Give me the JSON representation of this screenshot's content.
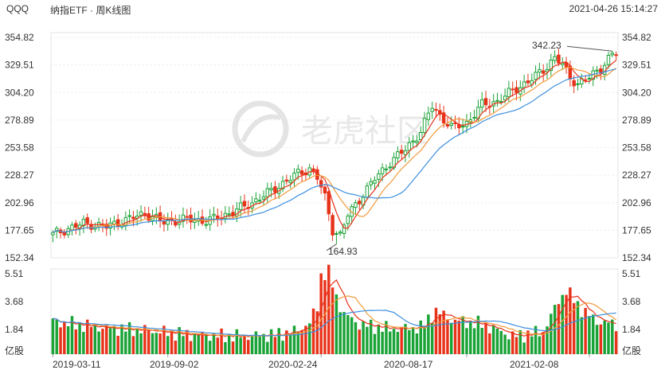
{
  "header": {
    "symbol": "QQQ",
    "title": "纳指ETF · 周K线图",
    "timestamp": "2021-04-26 15:14:27"
  },
  "watermark": "老虎社区",
  "colors": {
    "up": "#1aa336",
    "down": "#e8331b",
    "ma_short": "#e8331b",
    "ma_mid": "#f29a3c",
    "ma_long": "#3d8fe0"
  },
  "chart_data": [
    {
      "type": "candlestick",
      "y_ticks": [
        "354.82",
        "329.51",
        "304.20",
        "278.89",
        "253.58",
        "228.27",
        "202.96",
        "177.65",
        "152.34"
      ],
      "ylim": [
        152.34,
        354.82
      ],
      "x_ticks": [
        "2019-03-11",
        "2019-09-02",
        "2020-02-24",
        "2020-08-17",
        "2021-02-08"
      ],
      "annotations": [
        {
          "text": "342.23",
          "value": 342.23
        },
        {
          "text": "164.93",
          "value": 164.93
        }
      ],
      "anchors": [
        {
          "i": 0,
          "c": 174
        },
        {
          "i": 8,
          "c": 184
        },
        {
          "i": 14,
          "c": 181
        },
        {
          "i": 18,
          "c": 186
        },
        {
          "i": 24,
          "c": 193
        },
        {
          "i": 29,
          "c": 185
        },
        {
          "i": 35,
          "c": 188
        },
        {
          "i": 40,
          "c": 186
        },
        {
          "i": 46,
          "c": 193
        },
        {
          "i": 52,
          "c": 203
        },
        {
          "i": 58,
          "c": 216
        },
        {
          "i": 64,
          "c": 230
        },
        {
          "i": 67,
          "c": 234
        },
        {
          "i": 69,
          "c": 226
        },
        {
          "i": 71,
          "c": 208
        },
        {
          "i": 73,
          "c": 178
        },
        {
          "i": 75,
          "c": 173
        },
        {
          "i": 77,
          "c": 192
        },
        {
          "i": 80,
          "c": 206
        },
        {
          "i": 84,
          "c": 225
        },
        {
          "i": 88,
          "c": 240
        },
        {
          "i": 92,
          "c": 252
        },
        {
          "i": 96,
          "c": 268
        },
        {
          "i": 99,
          "c": 292
        },
        {
          "i": 101,
          "c": 283
        },
        {
          "i": 104,
          "c": 272
        },
        {
          "i": 108,
          "c": 276
        },
        {
          "i": 112,
          "c": 293
        },
        {
          "i": 116,
          "c": 296
        },
        {
          "i": 120,
          "c": 306
        },
        {
          "i": 124,
          "c": 314
        },
        {
          "i": 128,
          "c": 325
        },
        {
          "i": 131,
          "c": 336
        },
        {
          "i": 133,
          "c": 330
        },
        {
          "i": 135,
          "c": 318
        },
        {
          "i": 137,
          "c": 312
        },
        {
          "i": 140,
          "c": 318
        },
        {
          "i": 143,
          "c": 327
        },
        {
          "i": 146,
          "c": 339
        },
        {
          "i": 147,
          "c": 340
        }
      ]
    },
    {
      "type": "bar",
      "y_ticks": [
        "5.51",
        "3.68",
        "1.84"
      ],
      "ylim": [
        0,
        5.51
      ],
      "unit": "亿股",
      "anchors": [
        {
          "i": 0,
          "v": 2.2
        },
        {
          "i": 12,
          "v": 1.8
        },
        {
          "i": 24,
          "v": 1.6
        },
        {
          "i": 36,
          "v": 1.3
        },
        {
          "i": 48,
          "v": 1.2
        },
        {
          "i": 58,
          "v": 1.3
        },
        {
          "i": 64,
          "v": 1.6
        },
        {
          "i": 67,
          "v": 2.1
        },
        {
          "i": 69,
          "v": 3.2
        },
        {
          "i": 70,
          "v": 5.3
        },
        {
          "i": 72,
          "v": 5.5
        },
        {
          "i": 74,
          "v": 3.8
        },
        {
          "i": 76,
          "v": 2.7
        },
        {
          "i": 80,
          "v": 2.0
        },
        {
          "i": 88,
          "v": 1.7
        },
        {
          "i": 96,
          "v": 1.8
        },
        {
          "i": 100,
          "v": 2.9
        },
        {
          "i": 104,
          "v": 2.3
        },
        {
          "i": 112,
          "v": 2.0
        },
        {
          "i": 120,
          "v": 1.2
        },
        {
          "i": 128,
          "v": 1.5
        },
        {
          "i": 132,
          "v": 3.6
        },
        {
          "i": 134,
          "v": 4.3
        },
        {
          "i": 138,
          "v": 3.0
        },
        {
          "i": 142,
          "v": 2.2
        },
        {
          "i": 147,
          "v": 2.0
        }
      ]
    }
  ]
}
